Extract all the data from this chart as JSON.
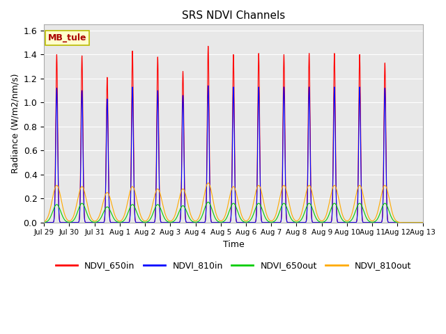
{
  "title": "SRS NDVI Channels",
  "ylabel": "Radiance (W/m2/nm/s)",
  "xlabel": "Time",
  "annotation_text": "MB_tule",
  "ylim": [
    0.0,
    1.65
  ],
  "bg_color": "#e8e8e8",
  "fig_color": "#ffffff",
  "legend_entries": [
    "NDVI_650in",
    "NDVI_810in",
    "NDVI_650out",
    "NDVI_810out"
  ],
  "line_colors": [
    "#ff0000",
    "#0000ff",
    "#00cc00",
    "#ffaa00"
  ],
  "xtick_labels": [
    "Jul 29",
    "Jul 30",
    "Jul 31",
    "Aug 1",
    "Aug 2",
    "Aug 3",
    "Aug 4",
    "Aug 5",
    "Aug 6",
    "Aug 7",
    "Aug 8",
    "Aug 9",
    "Aug 10",
    "Aug 11",
    "Aug 12",
    "Aug 13"
  ],
  "ytick_values": [
    0.0,
    0.2,
    0.4,
    0.6,
    0.8,
    1.0,
    1.2,
    1.4,
    1.6
  ],
  "num_days": 15,
  "peaks_650in": [
    1.4,
    1.39,
    1.21,
    1.43,
    1.38,
    1.26,
    1.47,
    1.4,
    1.41,
    1.4,
    1.41,
    1.41,
    1.4,
    1.33,
    0.0
  ],
  "peaks_810in": [
    1.12,
    1.1,
    1.03,
    1.13,
    1.1,
    1.06,
    1.14,
    1.13,
    1.13,
    1.13,
    1.13,
    1.13,
    1.13,
    1.12,
    0.0
  ],
  "peaks_650out": [
    0.15,
    0.16,
    0.13,
    0.15,
    0.15,
    0.14,
    0.17,
    0.16,
    0.16,
    0.16,
    0.16,
    0.16,
    0.16,
    0.16,
    0.0
  ],
  "peaks_810out": [
    0.31,
    0.3,
    0.25,
    0.3,
    0.28,
    0.28,
    0.33,
    0.3,
    0.31,
    0.31,
    0.31,
    0.31,
    0.31,
    0.31,
    0.0
  ]
}
